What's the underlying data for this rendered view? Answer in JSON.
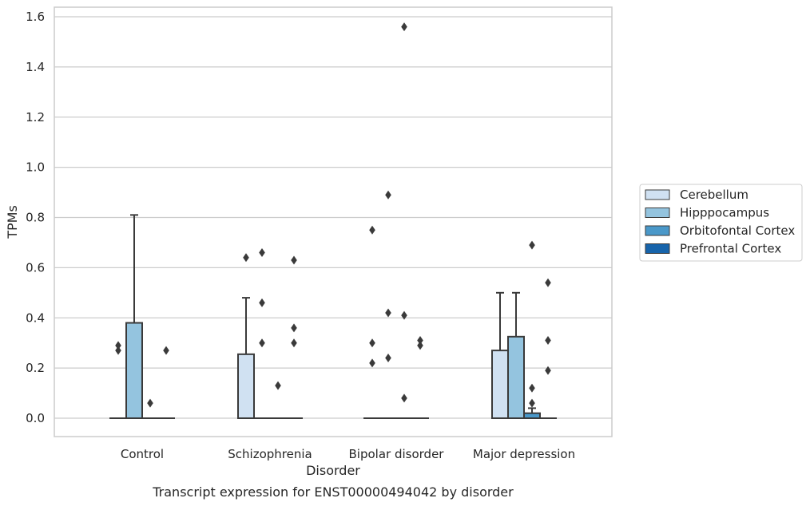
{
  "chart_data": {
    "type": "box",
    "title": "",
    "caption": "Transcript expression for ENST00000494042 by disorder",
    "xlabel": "Disorder",
    "ylabel": "TPMs",
    "ylim": [
      -0.075,
      1.64
    ],
    "yticks": [
      0.0,
      0.2,
      0.4,
      0.6,
      0.8,
      1.0,
      1.2,
      1.4,
      1.6
    ],
    "ytick_labels": [
      "0.0",
      "0.2",
      "0.4",
      "0.6",
      "0.8",
      "1.0",
      "1.2",
      "1.4",
      "1.6"
    ],
    "grid": "horizontal",
    "legend_position": "right",
    "categories": [
      "Control",
      "Schizophrenia",
      "Bipolar disorder",
      "Major depression"
    ],
    "series": [
      {
        "name": "Cerebellum",
        "color": "#d0e1f2",
        "boxes": [
          {
            "q1": 0,
            "median": 0,
            "q3": 0,
            "whisker_low": 0,
            "whisker_high": 0,
            "outliers": [
              0.27,
              0.29
            ]
          },
          {
            "q1": 0,
            "median": 0,
            "q3": 0.255,
            "whisker_low": 0,
            "whisker_high": 0.48,
            "outliers": [
              0.64
            ]
          },
          {
            "q1": 0,
            "median": 0,
            "q3": 0,
            "whisker_low": 0,
            "whisker_high": 0,
            "outliers": [
              0.22,
              0.3,
              0.75
            ]
          },
          {
            "q1": 0,
            "median": 0,
            "q3": 0.27,
            "whisker_low": 0,
            "whisker_high": 0.5,
            "outliers": []
          }
        ]
      },
      {
        "name": "Hipppocampus",
        "color": "#94c4df",
        "boxes": [
          {
            "q1": 0,
            "median": 0,
            "q3": 0.38,
            "whisker_low": 0,
            "whisker_high": 0.81,
            "outliers": []
          },
          {
            "q1": 0,
            "median": 0,
            "q3": 0,
            "whisker_low": 0,
            "whisker_high": 0,
            "outliers": [
              0.3,
              0.46,
              0.66
            ]
          },
          {
            "q1": 0,
            "median": 0,
            "q3": 0,
            "whisker_low": 0,
            "whisker_high": 0,
            "outliers": [
              0.24,
              0.42,
              0.89
            ]
          },
          {
            "q1": 0,
            "median": 0,
            "q3": 0.325,
            "whisker_low": 0,
            "whisker_high": 0.5,
            "outliers": []
          }
        ]
      },
      {
        "name": "Orbitofontal Cortex",
        "color": "#4a98c9",
        "boxes": [
          {
            "q1": 0,
            "median": 0,
            "q3": 0,
            "whisker_low": 0,
            "whisker_high": 0,
            "outliers": [
              0.06
            ]
          },
          {
            "q1": 0,
            "median": 0,
            "q3": 0,
            "whisker_low": 0,
            "whisker_high": 0,
            "outliers": [
              0.13
            ]
          },
          {
            "q1": 0,
            "median": 0,
            "q3": 0,
            "whisker_low": 0,
            "whisker_high": 0,
            "outliers": [
              0.08,
              0.41,
              1.56
            ]
          },
          {
            "q1": 0,
            "median": 0,
            "q3": 0.02,
            "whisker_low": 0,
            "whisker_high": 0.04,
            "outliers": [
              0.06,
              0.12,
              0.69
            ]
          }
        ]
      },
      {
        "name": "Prefrontal Cortex",
        "color": "#1764ab",
        "boxes": [
          {
            "q1": 0,
            "median": 0,
            "q3": 0,
            "whisker_low": 0,
            "whisker_high": 0,
            "outliers": [
              0.27
            ]
          },
          {
            "q1": 0,
            "median": 0,
            "q3": 0,
            "whisker_low": 0,
            "whisker_high": 0,
            "outliers": [
              0.3,
              0.36,
              0.63
            ]
          },
          {
            "q1": 0,
            "median": 0,
            "q3": 0,
            "whisker_low": 0,
            "whisker_high": 0,
            "outliers": [
              0.29,
              0.31
            ]
          },
          {
            "q1": 0,
            "median": 0,
            "q3": 0,
            "whisker_low": 0,
            "whisker_high": 0,
            "outliers": [
              0.19,
              0.31,
              0.54
            ]
          }
        ]
      }
    ]
  }
}
